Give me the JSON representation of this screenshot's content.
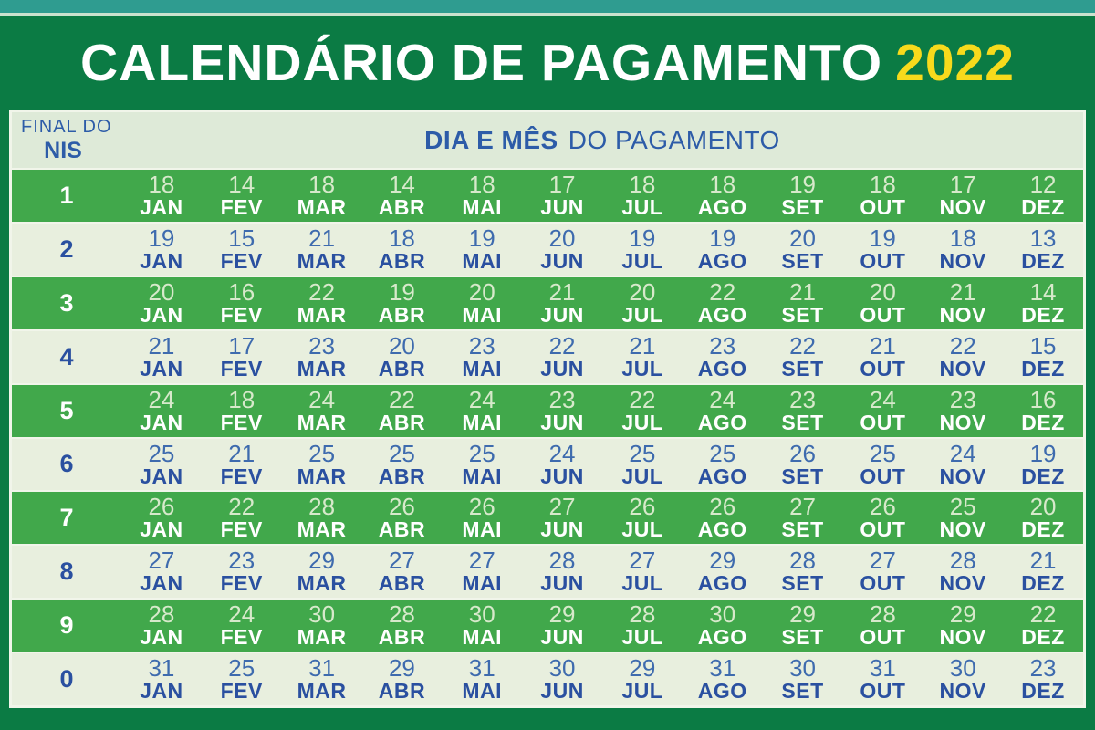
{
  "title": {
    "main": "CALENDÁRIO DE PAGAMENTO",
    "year": "2022"
  },
  "header": {
    "nis_line1": "FINAL DO",
    "nis_line2": "NIS",
    "months_title_bold": "DIA E MÊS",
    "months_title_regular": "DO PAGAMENTO"
  },
  "months": [
    "JAN",
    "FEV",
    "MAR",
    "ABR",
    "MAI",
    "JUN",
    "JUL",
    "AGO",
    "SET",
    "OUT",
    "NOV",
    "DEZ"
  ],
  "rows": [
    {
      "nis": "1",
      "days": [
        18,
        14,
        18,
        14,
        18,
        17,
        18,
        18,
        19,
        18,
        17,
        12
      ]
    },
    {
      "nis": "2",
      "days": [
        19,
        15,
        21,
        18,
        19,
        20,
        19,
        19,
        20,
        19,
        18,
        13
      ]
    },
    {
      "nis": "3",
      "days": [
        20,
        16,
        22,
        19,
        20,
        21,
        20,
        22,
        21,
        20,
        21,
        14
      ]
    },
    {
      "nis": "4",
      "days": [
        21,
        17,
        23,
        20,
        23,
        22,
        21,
        23,
        22,
        21,
        22,
        15
      ]
    },
    {
      "nis": "5",
      "days": [
        24,
        18,
        24,
        22,
        24,
        23,
        22,
        24,
        23,
        24,
        23,
        16
      ]
    },
    {
      "nis": "6",
      "days": [
        25,
        21,
        25,
        25,
        25,
        24,
        25,
        25,
        26,
        25,
        24,
        19
      ]
    },
    {
      "nis": "7",
      "days": [
        26,
        22,
        28,
        26,
        26,
        27,
        26,
        26,
        27,
        26,
        25,
        20
      ]
    },
    {
      "nis": "8",
      "days": [
        27,
        23,
        29,
        27,
        27,
        28,
        27,
        29,
        28,
        27,
        28,
        21
      ]
    },
    {
      "nis": "9",
      "days": [
        28,
        24,
        30,
        28,
        30,
        29,
        28,
        30,
        29,
        28,
        29,
        22
      ]
    },
    {
      "nis": "0",
      "days": [
        31,
        25,
        31,
        29,
        31,
        30,
        29,
        31,
        30,
        31,
        30,
        23
      ]
    }
  ],
  "colors": {
    "background_dark_green": "#0B7B44",
    "top_strip_teal": "#2F9C90",
    "row_green": "#41A84B",
    "row_light": "#E8EFDE",
    "header_bg": "#DEEAD8",
    "separator": "#F1F5EA",
    "navy_text": "#2A50A0",
    "header_navy": "#2D5CA8",
    "title_white": "#FFFFFF",
    "title_yellow": "#F7DA1C"
  }
}
